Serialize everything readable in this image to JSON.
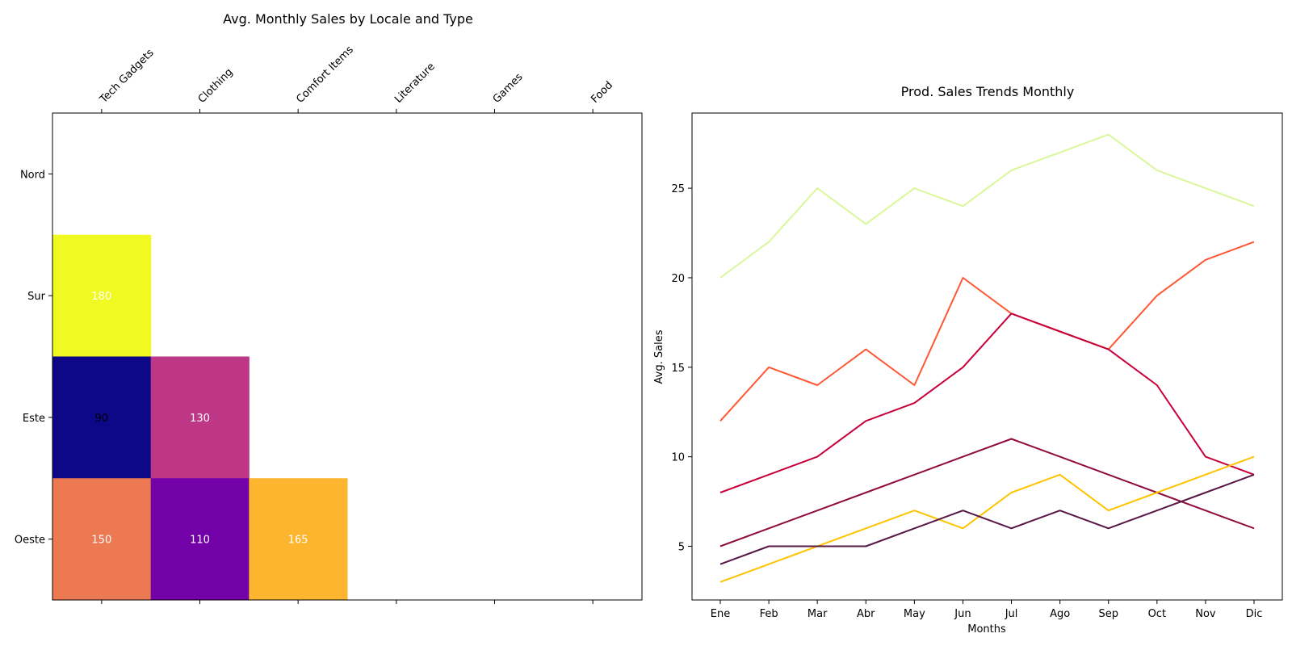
{
  "chart_data": [
    {
      "type": "heatmap",
      "title": "Avg. Monthly Sales by Locale and Type",
      "x_categories": [
        "Tech Gadgets",
        "Clothing",
        "Comfort Items",
        "Literature",
        "Games",
        "Food"
      ],
      "y_categories": [
        "Nord",
        "Sur",
        "Este",
        "Oeste"
      ],
      "cells": [
        {
          "row": 1,
          "col": 0,
          "value": 180,
          "color": "#f0f921"
        },
        {
          "row": 2,
          "col": 0,
          "value": 90,
          "color": "#0d0887"
        },
        {
          "row": 2,
          "col": 1,
          "value": 130,
          "color": "#bd3786"
        },
        {
          "row": 3,
          "col": 0,
          "value": 150,
          "color": "#ed7953"
        },
        {
          "row": 3,
          "col": 1,
          "value": 110,
          "color": "#7201a8"
        },
        {
          "row": 3,
          "col": 2,
          "value": 165,
          "color": "#fdb42f"
        }
      ]
    },
    {
      "type": "line",
      "title": "Prod. Sales Trends Monthly",
      "xlabel": "Months",
      "ylabel": "Avg. Sales",
      "x": [
        "Ene",
        "Feb",
        "Mar",
        "Abr",
        "May",
        "Jun",
        "Jul",
        "Ago",
        "Sep",
        "Oct",
        "Nov",
        "Dic"
      ],
      "ylim": [
        2,
        29.2
      ],
      "yticks": [
        5,
        10,
        15,
        20,
        25
      ],
      "grid": false,
      "series": [
        {
          "color": "#daf79a",
          "values": [
            20,
            22,
            25,
            23,
            25,
            24,
            26,
            27,
            28,
            26,
            25,
            24
          ]
        },
        {
          "color": "#ff5733",
          "values": [
            12,
            15,
            14,
            16,
            14,
            20,
            18,
            17,
            16,
            19,
            21,
            22
          ]
        },
        {
          "color": "#c70039",
          "values": [
            8,
            9,
            10,
            12,
            13,
            15,
            18,
            17,
            16,
            14,
            10,
            9
          ]
        },
        {
          "color": "#900c3f",
          "values": [
            5,
            6,
            7,
            8,
            9,
            10,
            11,
            10,
            9,
            8,
            7,
            6
          ]
        },
        {
          "color": "#ffc300",
          "values": [
            3,
            4,
            5,
            6,
            7,
            6,
            8,
            9,
            7,
            8,
            9,
            10
          ]
        },
        {
          "color": "#581845",
          "values": [
            4,
            5,
            5,
            5,
            6,
            7,
            6,
            7,
            6,
            7,
            8,
            9
          ]
        }
      ]
    }
  ]
}
